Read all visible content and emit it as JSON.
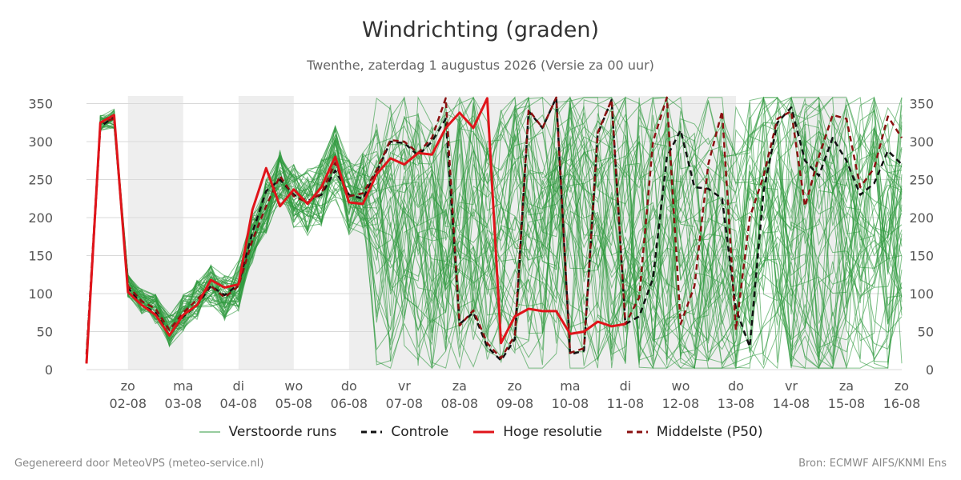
{
  "header": {
    "title": "Windrichting (graden)",
    "subtitle": "Twenthe, zaterdag  1 augustus 2026 (Versie za 00 uur)"
  },
  "footer": {
    "left": "Gegenereerd door MeteoVPS (meteo-service.nl)",
    "right": "Bron: ECMWF AIFS/KNMI Ens"
  },
  "legend": [
    {
      "label": "Verstoorde runs",
      "color": "#2e9a3e",
      "style": "thin-solid"
    },
    {
      "label": "Controle",
      "color": "#111111",
      "style": "dashed"
    },
    {
      "label": "Hoge resolutie",
      "color": "#e0141a",
      "style": "solid"
    },
    {
      "label": "Middelste (P50)",
      "color": "#8b1010",
      "style": "dashed"
    }
  ],
  "chart_data": {
    "type": "line",
    "title": "Windrichting (graden)",
    "ylim": [
      0,
      360
    ],
    "yticks": [
      0,
      50,
      100,
      150,
      200,
      250,
      300,
      350
    ],
    "xlim": [
      -0.75,
      14
    ],
    "x_unit": "days from 02-08 00h",
    "xticks": [
      {
        "day": "zo",
        "date": "02-08"
      },
      {
        "day": "ma",
        "date": "03-08"
      },
      {
        "day": "di",
        "date": "04-08"
      },
      {
        "day": "wo",
        "date": "05-08"
      },
      {
        "day": "do",
        "date": "06-08"
      },
      {
        "day": "vr",
        "date": "07-08"
      },
      {
        "day": "za",
        "date": "08-08"
      },
      {
        "day": "zo",
        "date": "09-08"
      },
      {
        "day": "ma",
        "date": "10-08"
      },
      {
        "day": "di",
        "date": "11-08"
      },
      {
        "day": "wo",
        "date": "12-08"
      },
      {
        "day": "do",
        "date": "13-08"
      },
      {
        "day": "vr",
        "date": "14-08"
      },
      {
        "day": "za",
        "date": "15-08"
      },
      {
        "day": "zo",
        "date": "16-08"
      }
    ],
    "shaded_days": [
      {
        "start": 0,
        "end": 1
      },
      {
        "start": 2,
        "end": 3
      },
      {
        "start": 4,
        "end": 6
      },
      {
        "start": 6,
        "end": 10
      },
      {
        "start": 10,
        "end": 11
      },
      {
        "start": 12,
        "end": 13
      }
    ],
    "grid": true,
    "legend_position": "bottom",
    "series": [
      {
        "name": "Controle",
        "style": "dashed",
        "color": "#111111",
        "x": [
          -0.75,
          -0.5,
          -0.25,
          0,
          0.25,
          0.5,
          0.75,
          1,
          1.25,
          1.5,
          1.75,
          2,
          2.25,
          2.5,
          2.75,
          3,
          3.25,
          3.5,
          3.75,
          4,
          4.25,
          4.5,
          4.75,
          5,
          5.25,
          5.5,
          5.75,
          6,
          6.25,
          6.5,
          6.75,
          7,
          7.25,
          7.5,
          7.75,
          8,
          8.25,
          8.5,
          8.75,
          9,
          9.25,
          9.5,
          9.75,
          10,
          10.25,
          10.5,
          10.75,
          11,
          11.25,
          11.5,
          11.75,
          12,
          12.25,
          12.5,
          12.75,
          13,
          13.25,
          13.5,
          13.75,
          14
        ],
        "y": [
          10,
          320,
          332,
          108,
          85,
          75,
          45,
          70,
          85,
          110,
          98,
          112,
          180,
          235,
          250,
          230,
          222,
          230,
          262,
          230,
          225,
          260,
          300,
          298,
          282,
          300,
          330,
          60,
          75,
          30,
          12,
          40,
          340,
          318,
          358,
          20,
          25,
          310,
          355,
          60,
          70,
          120,
          280,
          315,
          240,
          238,
          225,
          80,
          30,
          235,
          325,
          345,
          275,
          255,
          305,
          275,
          230,
          245,
          288,
          270
        ]
      },
      {
        "name": "Hoge resolutie",
        "style": "solid",
        "color": "#e0141a",
        "x": [
          -0.75,
          -0.5,
          -0.25,
          0,
          0.25,
          0.5,
          0.75,
          1,
          1.25,
          1.5,
          1.75,
          2,
          2.25,
          2.5,
          2.75,
          3,
          3.25,
          3.5,
          3.75,
          4,
          4.25,
          4.5,
          4.75,
          5,
          5.25,
          5.5,
          5.75,
          6,
          6.25,
          6.5,
          6.75,
          7,
          7.25,
          7.5,
          7.75,
          8,
          8.25,
          8.5,
          8.75,
          9
        ],
        "y": [
          8,
          325,
          335,
          102,
          85,
          72,
          45,
          72,
          85,
          118,
          108,
          112,
          210,
          265,
          215,
          237,
          218,
          240,
          280,
          220,
          218,
          257,
          278,
          270,
          285,
          283,
          318,
          338,
          318,
          357,
          35,
          70,
          80,
          77,
          77,
          47,
          50,
          63,
          57,
          60
        ]
      },
      {
        "name": "Middelste (P50)",
        "style": "dashed",
        "color": "#8b1010",
        "x": [
          -0.75,
          -0.5,
          -0.25,
          0,
          0.25,
          0.5,
          0.75,
          1,
          1.25,
          1.5,
          1.75,
          2,
          2.25,
          2.5,
          2.75,
          3,
          3.25,
          3.5,
          3.75,
          4,
          4.25,
          4.5,
          4.75,
          5,
          5.25,
          5.5,
          5.75,
          6,
          6.25,
          6.5,
          6.75,
          7,
          7.25,
          7.5,
          7.75,
          8,
          8.25,
          8.5,
          8.75,
          9,
          9.25,
          9.5,
          9.75,
          10,
          10.25,
          10.5,
          10.75,
          11,
          11.25,
          11.5,
          11.75,
          12,
          12.25,
          12.5,
          12.75,
          13,
          13.25,
          13.5,
          13.75,
          14
        ],
        "y": [
          20,
          325,
          330,
          110,
          90,
          80,
          52,
          75,
          92,
          110,
          95,
          110,
          170,
          215,
          255,
          228,
          220,
          232,
          272,
          228,
          232,
          262,
          302,
          300,
          285,
          305,
          357,
          58,
          78,
          35,
          15,
          45,
          342,
          318,
          358,
          22,
          28,
          312,
          355,
          60,
          95,
          300,
          358,
          60,
          110,
          270,
          340,
          52,
          200,
          255,
          330,
          340,
          215,
          280,
          335,
          330,
          240,
          265,
          333,
          305
        ]
      }
    ],
    "ensemble": {
      "name": "Verstoorde runs",
      "color": "#2e9a3e",
      "count": 50
    }
  }
}
